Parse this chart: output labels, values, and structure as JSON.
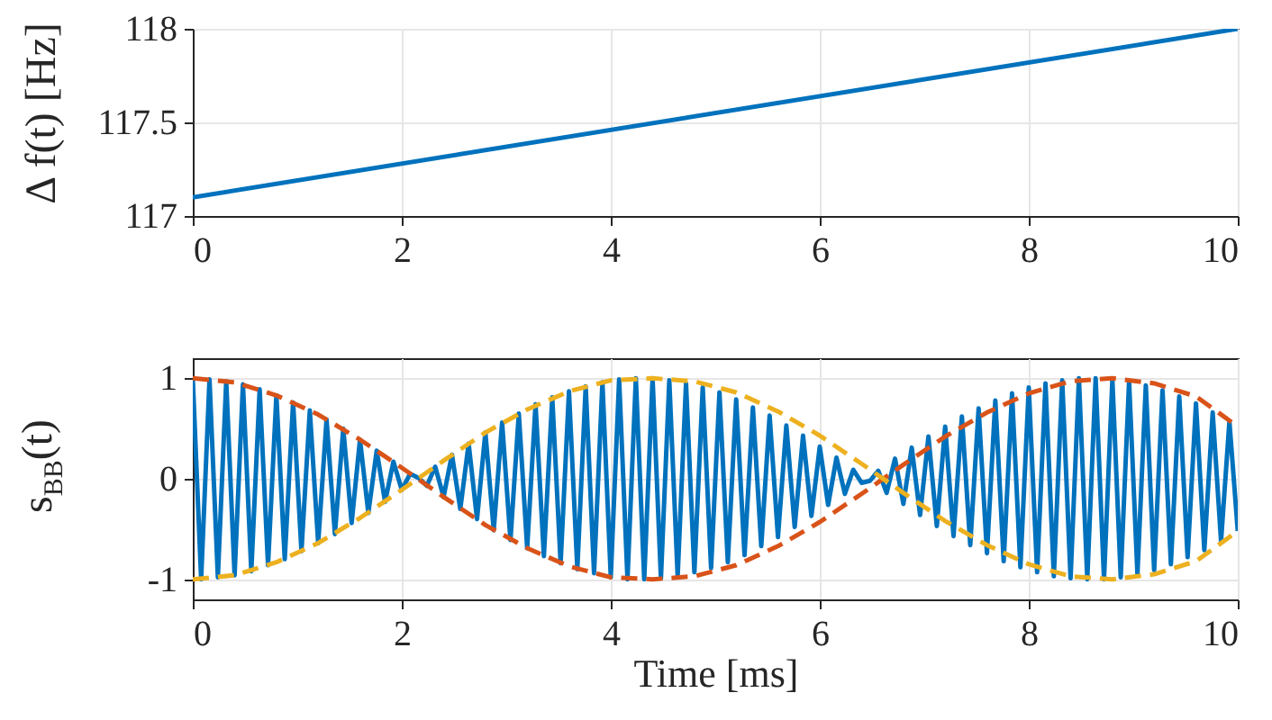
{
  "chart_data": [
    {
      "type": "line",
      "ylabel": "Δ f(t)  [Hz]",
      "x": [
        0,
        10
      ],
      "series": [
        {
          "color": "#0072bd",
          "values": [
            117.1,
            118
          ]
        }
      ],
      "xlim": [
        0,
        10
      ],
      "xticks": [
        0,
        2,
        4,
        6,
        8,
        10
      ],
      "ylim": [
        117,
        118
      ],
      "yticks": [
        117,
        117.5,
        118
      ],
      "grid": true
    },
    {
      "type": "line",
      "xlabel": "Time [ms]",
      "ylabel": "s$_{BB}$(t)",
      "xlim": [
        0,
        10
      ],
      "xticks": [
        0,
        2,
        4,
        6,
        8,
        10
      ],
      "ylim": [
        -1.2,
        1.2
      ],
      "yticks": [
        -1,
        0,
        1
      ],
      "grid": true,
      "series": [
        {
          "color": "#0072bd",
          "line_style": "solid",
          "x": [
            0,
            0.08,
            0.16,
            0.24,
            0.32,
            0.4,
            0.48,
            0.56,
            0.64,
            0.72,
            0.8,
            0.88,
            0.96,
            1.04,
            1.12,
            1.2,
            1.28,
            1.36,
            1.44,
            1.52,
            1.6,
            1.68,
            1.76,
            1.84,
            1.92,
            2,
            2.08,
            2.16,
            2.24,
            2.32,
            2.4,
            2.48,
            2.56,
            2.64,
            2.72,
            2.8,
            2.88,
            2.96,
            3.04,
            3.12,
            3.2,
            3.28,
            3.36,
            3.44,
            3.52,
            3.6,
            3.68,
            3.76,
            3.84,
            3.92,
            4,
            4.08,
            4.16,
            4.24,
            4.32,
            4.4,
            4.48,
            4.56,
            4.64,
            4.72,
            4.8,
            4.88,
            4.96,
            5.04,
            5.12,
            5.2,
            5.28,
            5.36,
            5.44,
            5.52,
            5.6,
            5.68,
            5.76,
            5.84,
            5.92,
            6,
            6.08,
            6.16,
            6.24,
            6.32,
            6.4,
            6.48,
            6.56,
            6.64,
            6.72,
            6.8,
            6.88,
            6.96,
            7.04,
            7.12,
            7.2,
            7.28,
            7.36,
            7.44,
            7.52,
            7.6,
            7.68,
            7.76,
            7.84,
            7.92,
            8,
            8.08,
            8.16,
            8.24,
            8.32,
            8.4,
            8.48,
            8.56,
            8.64,
            8.72,
            8.8,
            8.88,
            8.96,
            9.04,
            9.12,
            9.2,
            9.28,
            9.36,
            9.44,
            9.52,
            9.6,
            9.68,
            9.76,
            9.84,
            9.92,
            10
          ],
          "values": [
            1,
            -1,
            0.99,
            -0.98,
            0.97,
            -0.96,
            0.94,
            -0.92,
            0.89,
            -0.86,
            0.83,
            -0.8,
            0.76,
            -0.72,
            0.68,
            -0.64,
            0.59,
            -0.55,
            0.5,
            -0.44,
            0.39,
            -0.34,
            0.28,
            -0.23,
            0.17,
            -0.11,
            0.05,
            0.01,
            -0.07,
            0.12,
            -0.18,
            0.24,
            -0.3,
            0.35,
            -0.4,
            0.46,
            -0.51,
            0.56,
            -0.61,
            0.65,
            -0.69,
            0.74,
            -0.77,
            0.81,
            -0.84,
            0.87,
            -0.9,
            0.92,
            -0.94,
            0.96,
            -0.98,
            0.99,
            -1,
            1,
            -1,
            1,
            -0.99,
            0.98,
            -0.97,
            0.95,
            -0.93,
            0.91,
            -0.89,
            0.86,
            -0.83,
            0.79,
            -0.76,
            0.71,
            -0.67,
            0.63,
            -0.58,
            0.53,
            -0.48,
            0.43,
            -0.37,
            0.32,
            -0.26,
            0.21,
            -0.15,
            0.09,
            -0.04,
            -0.02,
            0.08,
            -0.14,
            0.2,
            -0.25,
            0.31,
            -0.36,
            0.42,
            -0.47,
            0.52,
            -0.57,
            0.62,
            -0.66,
            0.7,
            -0.74,
            0.78,
            -0.82,
            0.85,
            -0.88,
            0.91,
            -0.93,
            0.95,
            -0.97,
            0.98,
            -0.99,
            1,
            -1,
            1,
            -1,
            0.99,
            -0.98,
            0.97,
            -0.95,
            0.93,
            -0.91,
            0.88,
            -0.85,
            0.82,
            -0.78,
            0.75,
            -0.71,
            0.66,
            -0.62,
            0.57,
            -0.52
          ]
        },
        {
          "color": "#d95319",
          "line_style": "dashed",
          "x": [
            0,
            0.4,
            0.8,
            1.2,
            1.6,
            2,
            2.4,
            2.8,
            3.2,
            3.6,
            4,
            4.4,
            4.8,
            5.2,
            5.6,
            6,
            6.4,
            6.8,
            7.2,
            7.6,
            8,
            8.4,
            8.8,
            9.2,
            9.6,
            10
          ],
          "values": [
            1,
            0.96,
            0.83,
            0.64,
            0.39,
            0.11,
            -0.18,
            -0.46,
            -0.69,
            -0.87,
            -0.98,
            -1,
            -0.97,
            -0.86,
            -0.67,
            -0.43,
            -0.15,
            0.14,
            0.42,
            0.66,
            0.85,
            0.97,
            1,
            0.95,
            0.82,
            0.52
          ]
        },
        {
          "color": "#edb120",
          "line_style": "dashed",
          "x": [
            0,
            0.4,
            0.8,
            1.2,
            1.6,
            2,
            2.4,
            2.8,
            3.2,
            3.6,
            4,
            4.4,
            4.8,
            5.2,
            5.6,
            6,
            6.4,
            6.8,
            7.2,
            7.6,
            8,
            8.4,
            8.8,
            9.2,
            9.6,
            10
          ],
          "values": [
            -1,
            -0.96,
            -0.83,
            -0.64,
            -0.39,
            -0.11,
            0.18,
            0.46,
            0.69,
            0.87,
            0.98,
            1,
            0.97,
            0.86,
            0.67,
            0.43,
            0.15,
            -0.14,
            -0.42,
            -0.66,
            -0.85,
            -0.97,
            -1,
            -0.95,
            -0.82,
            -0.52
          ]
        }
      ]
    }
  ]
}
